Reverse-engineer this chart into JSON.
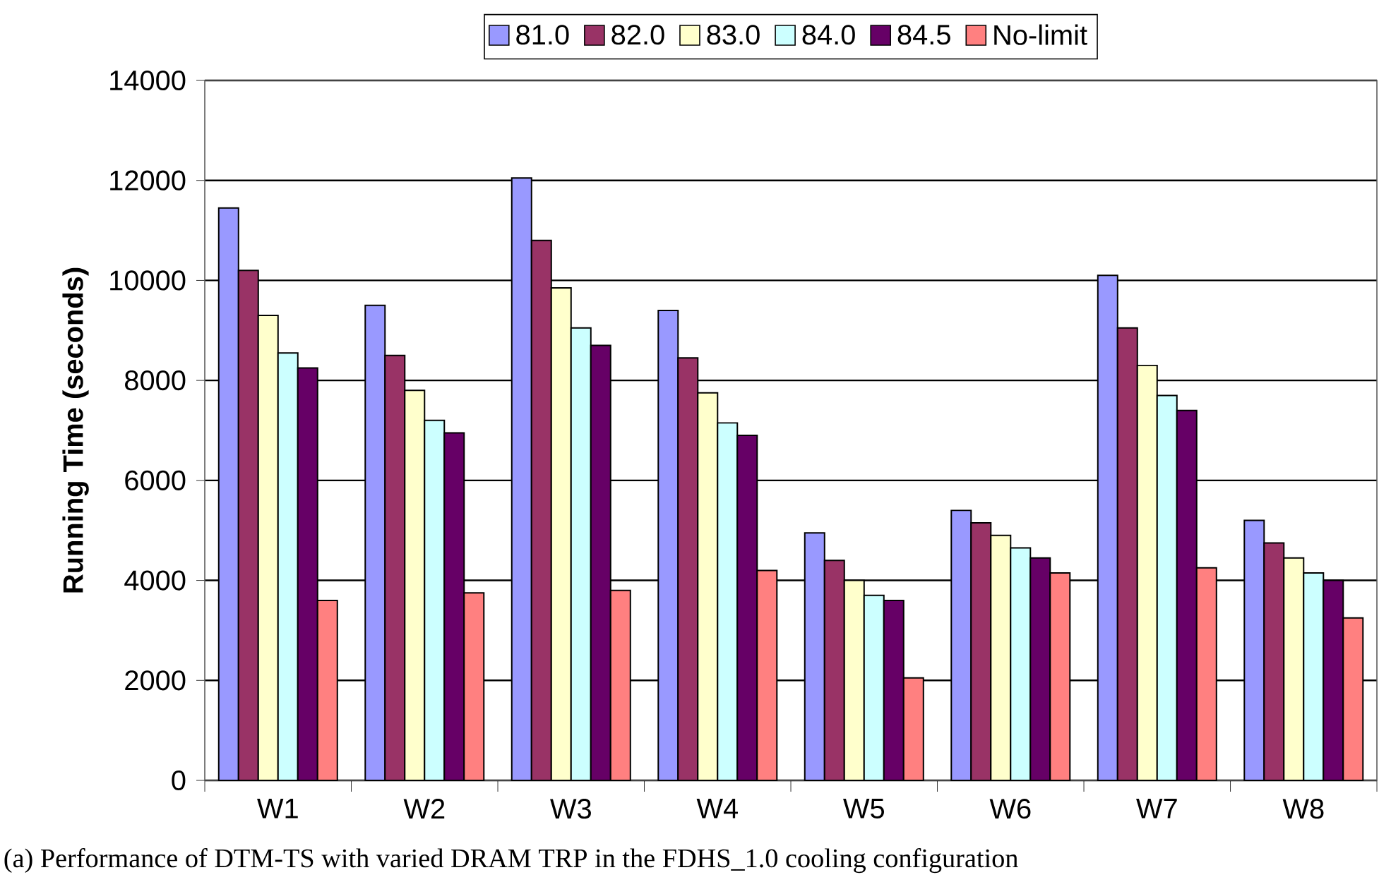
{
  "chart_data": {
    "type": "bar",
    "ylabel": "**Running Time (seconds)**",
    "categories": [
      "W1",
      "W2",
      "W3",
      "W4",
      "W5",
      "W6",
      "W7",
      "W8"
    ],
    "series": [
      {
        "name": "81.0",
        "color": "#9999ff",
        "values": [
          11450,
          9500,
          12050,
          9400,
          4950,
          5400,
          10100,
          5200
        ]
      },
      {
        "name": "82.0",
        "color": "#993366",
        "values": [
          10200,
          8500,
          10800,
          8450,
          4400,
          5150,
          9050,
          4750
        ]
      },
      {
        "name": "83.0",
        "color": "#ffffcc",
        "values": [
          9300,
          7800,
          9850,
          7750,
          4000,
          4900,
          8300,
          4450
        ]
      },
      {
        "name": "84.0",
        "color": "#ccffff",
        "values": [
          8550,
          7200,
          9050,
          7150,
          3700,
          4650,
          7700,
          4150
        ]
      },
      {
        "name": "84.5",
        "color": "#660066",
        "values": [
          8250,
          6950,
          8700,
          6900,
          3600,
          4450,
          7400,
          4000
        ]
      },
      {
        "name": "No-limit",
        "color": "#ff8080",
        "values": [
          3600,
          3750,
          3800,
          4200,
          2050,
          4150,
          4250,
          3250
        ]
      }
    ],
    "ylim": [
      0,
      14000
    ],
    "yticks": [
      0,
      2000,
      4000,
      6000,
      8000,
      10000,
      12000,
      14000
    ],
    "grid": "y",
    "legend": "top",
    "annotations": [
      "(a) Performance of DTM-TS with varied DRAM TRP in the FDHS_1.0 cooling configuration"
    ]
  }
}
